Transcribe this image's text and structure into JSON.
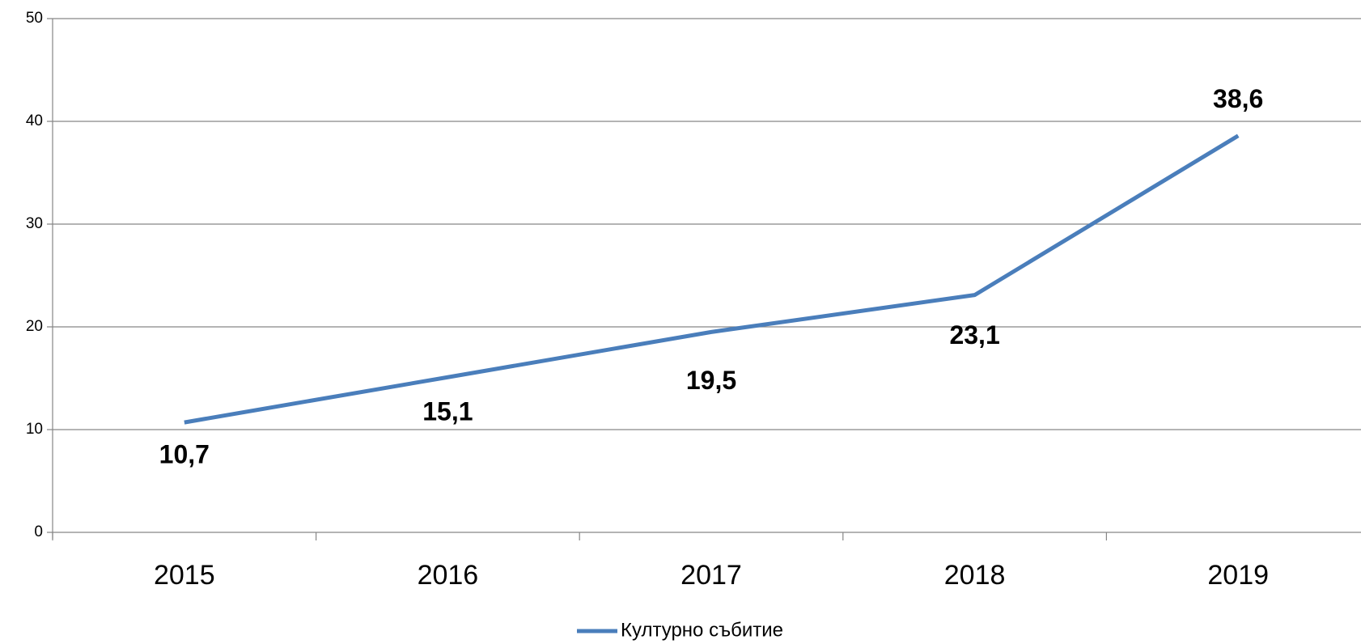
{
  "chart_data": {
    "type": "line",
    "categories": [
      "2015",
      "2016",
      "2017",
      "2018",
      "2019"
    ],
    "series": [
      {
        "name": "Културно събитие",
        "color": "#4a7ebb",
        "values": [
          10.7,
          15.1,
          19.5,
          23.1,
          38.6
        ],
        "value_labels": [
          "10,7",
          "15,1",
          "19,5",
          "23,1",
          "38,6"
        ]
      }
    ],
    "ylim": [
      0,
      50
    ],
    "yticks": [
      0,
      10,
      20,
      30,
      40,
      50
    ],
    "grid": true,
    "legend": "bottom"
  }
}
